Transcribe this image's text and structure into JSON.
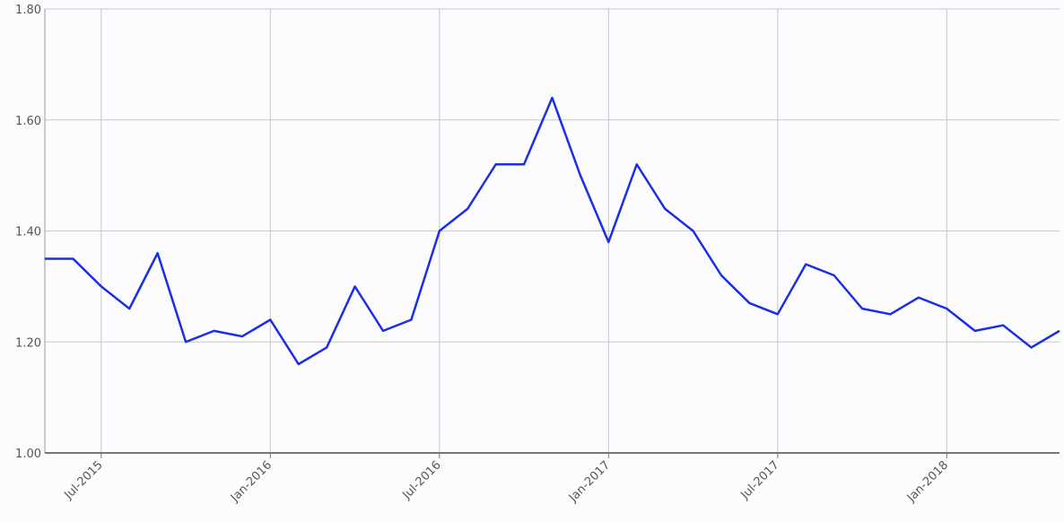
{
  "chart_data": {
    "type": "line",
    "x": [
      "2015-05",
      "2015-06",
      "2015-07",
      "2015-08",
      "2015-09",
      "2015-10",
      "2015-11",
      "2015-12",
      "2016-01",
      "2016-02",
      "2016-03",
      "2016-04",
      "2016-05",
      "2016-06",
      "2016-07",
      "2016-08",
      "2016-09",
      "2016-10",
      "2016-11",
      "2016-12",
      "2017-01",
      "2017-02",
      "2017-03",
      "2017-04",
      "2017-05",
      "2017-06",
      "2017-07",
      "2017-08",
      "2017-09",
      "2017-10",
      "2017-11",
      "2017-12",
      "2018-01",
      "2018-02",
      "2018-03",
      "2018-04",
      "2018-05"
    ],
    "series": [
      {
        "color": "#1a2ee6",
        "values": [
          1.35,
          1.35,
          1.3,
          1.26,
          1.36,
          1.2,
          1.22,
          1.21,
          1.24,
          1.16,
          1.19,
          1.3,
          1.22,
          1.24,
          1.4,
          1.44,
          1.52,
          1.52,
          1.64,
          1.5,
          1.38,
          1.52,
          1.44,
          1.4,
          1.32,
          1.27,
          1.25,
          1.34,
          1.32,
          1.26,
          1.25,
          1.28,
          1.26,
          1.22,
          1.23,
          1.19,
          1.22
        ]
      }
    ],
    "xlim": [
      "2015-05",
      "2018-05"
    ],
    "xticks": [
      {
        "value": "2015-07",
        "label": "Jul-2015"
      },
      {
        "value": "2016-01",
        "label": "Jan-2016"
      },
      {
        "value": "2016-07",
        "label": "Jul-2016"
      },
      {
        "value": "2017-01",
        "label": "Jan-2017"
      },
      {
        "value": "2017-07",
        "label": "Jul-2017"
      },
      {
        "value": "2018-01",
        "label": "Jan-2018"
      }
    ],
    "ylim": [
      1.0,
      1.8
    ],
    "yticks": [
      {
        "value": 1.0,
        "label": "1.00"
      },
      {
        "value": 1.2,
        "label": "1.20"
      },
      {
        "value": 1.4,
        "label": "1.40"
      },
      {
        "value": 1.6,
        "label": "1.60"
      },
      {
        "value": 1.8,
        "label": "1.80"
      }
    ],
    "grid": true
  }
}
